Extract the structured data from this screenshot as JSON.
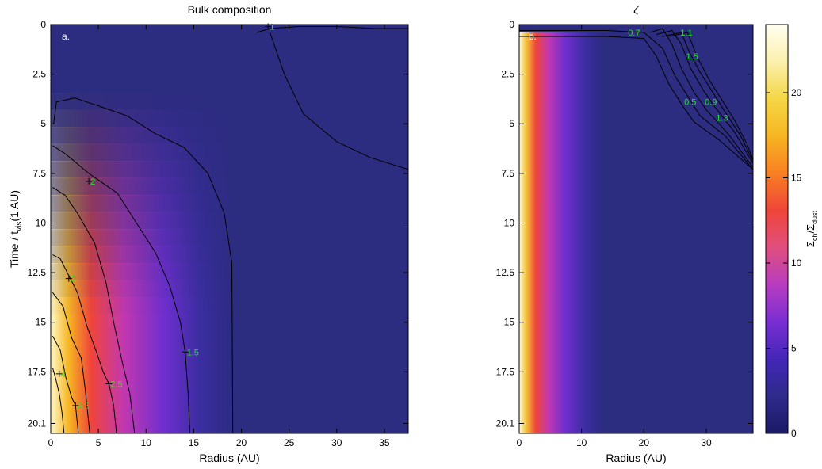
{
  "chart_data": [
    {
      "type": "heatmap",
      "title": "Bulk composition",
      "panel_label": "a.",
      "xlabel": "Radius (AU)",
      "ylabel": {
        "main": "Time / t",
        "sub": "vis",
        "tail": "(1 AU)"
      },
      "xlim": [
        0,
        37.5
      ],
      "ylim": [
        0,
        20.6
      ],
      "y_inverted": true,
      "xticks": [
        0,
        5,
        10,
        15,
        20,
        25,
        30,
        35
      ],
      "yticks": [
        0,
        2.5,
        5,
        7.5,
        10,
        12.5,
        15,
        17.5,
        20.1
      ],
      "contour_labels": [
        {
          "text": "1",
          "x": 22.8,
          "y": 0.1
        },
        {
          "text": "2",
          "x": 4.0,
          "y": 7.9
        },
        {
          "text": "3",
          "x": 1.9,
          "y": 12.8
        },
        {
          "text": "4",
          "x": 0.9,
          "y": 17.6
        },
        {
          "text": "1.5",
          "x": 14.1,
          "y": 16.5
        },
        {
          "text": "2.5",
          "x": 6.1,
          "y": 18.1
        },
        {
          "text": "3.5",
          "x": 2.6,
          "y": 19.2
        }
      ],
      "contours": [
        {
          "level": "1",
          "points": [
            [
              21.6,
              0.4
            ],
            [
              23,
              0.2
            ],
            [
              26,
              0.1
            ],
            [
              30,
              0.1
            ],
            [
              34,
              0.2
            ],
            [
              37.5,
              0.2
            ]
          ]
        },
        {
          "level": "1b",
          "points": [
            [
              23,
              0.4
            ],
            [
              24.5,
              2.5
            ],
            [
              26.5,
              4.5
            ],
            [
              30,
              5.9
            ],
            [
              33.5,
              6.7
            ],
            [
              37.5,
              7.3
            ]
          ]
        },
        {
          "level": "1.2",
          "points": [
            [
              0.3,
              5.0
            ],
            [
              0.6,
              3.9
            ],
            [
              2.5,
              3.7
            ],
            [
              5,
              4.1
            ],
            [
              8,
              4.6
            ],
            [
              11,
              5.5
            ],
            [
              14,
              6.2
            ],
            [
              16.5,
              7.5
            ],
            [
              18.2,
              9.5
            ],
            [
              19,
              12
            ],
            [
              19.1,
              20.6
            ]
          ]
        },
        {
          "level": "1.5",
          "points": [
            [
              0.2,
              6.1
            ],
            [
              1.5,
              6.5
            ],
            [
              4,
              7.5
            ],
            [
              7,
              8.5
            ],
            [
              9,
              10
            ],
            [
              11,
              11.5
            ],
            [
              12.5,
              13.2
            ],
            [
              13.6,
              15
            ],
            [
              14.1,
              16.5
            ],
            [
              14.4,
              18.5
            ],
            [
              14.6,
              20.6
            ]
          ]
        },
        {
          "level": "2",
          "points": [
            [
              0.2,
              8.2
            ],
            [
              1.5,
              8.6
            ],
            [
              2.8,
              9.5
            ],
            [
              4.6,
              11
            ],
            [
              5.8,
              13
            ],
            [
              6.6,
              15
            ],
            [
              7.5,
              17
            ],
            [
              8.3,
              18.6
            ],
            [
              8.8,
              20.6
            ]
          ]
        },
        {
          "level": "2.5",
          "points": [
            [
              0.2,
              11.6
            ],
            [
              1.0,
              11.8
            ],
            [
              2.8,
              13.5
            ],
            [
              3.8,
              15.2
            ],
            [
              4.8,
              16.5
            ],
            [
              5.5,
              17.5
            ],
            [
              6.1,
              18.1
            ],
            [
              6.6,
              19.2
            ],
            [
              6.9,
              20.6
            ]
          ]
        },
        {
          "level": "3",
          "points": [
            [
              0.2,
              13.5
            ],
            [
              1.3,
              14.2
            ],
            [
              2.2,
              15.8
            ],
            [
              3.2,
              16.8
            ],
            [
              3.6,
              18.3
            ],
            [
              4.1,
              20.6
            ]
          ]
        },
        {
          "level": "3.5",
          "points": [
            [
              0.2,
              15.7
            ],
            [
              1.0,
              16.4
            ],
            [
              1.6,
              17.8
            ],
            [
              2.2,
              18.8
            ],
            [
              2.6,
              19.2
            ],
            [
              2.9,
              20.6
            ]
          ]
        },
        {
          "level": "4",
          "points": [
            [
              0.2,
              17.3
            ],
            [
              0.5,
              17.8
            ],
            [
              0.9,
              18.6
            ],
            [
              1.2,
              19.6
            ],
            [
              1.4,
              20.6
            ]
          ]
        }
      ]
    },
    {
      "type": "heatmap",
      "title": "ζ",
      "panel_label": "b.",
      "xlabel": "Radius (AU)",
      "xlim": [
        0,
        37.5
      ],
      "ylim": [
        0,
        20.6
      ],
      "y_inverted": true,
      "xticks": [
        0,
        10,
        20,
        30
      ],
      "yticks": [
        0,
        2.5,
        5,
        7.5,
        10,
        12.5,
        15,
        17.5,
        20.1
      ],
      "contour_labels": [
        {
          "text": "0.7",
          "x": 17.2,
          "y": 0.4
        },
        {
          "text": "1.1",
          "x": 25.6,
          "y": 0.4
        },
        {
          "text": "1.5",
          "x": 26.5,
          "y": 1.6
        },
        {
          "text": "0.5",
          "x": 26.2,
          "y": 3.9
        },
        {
          "text": "0.9",
          "x": 29.5,
          "y": 3.9
        },
        {
          "text": "1.3",
          "x": 31.3,
          "y": 4.7
        }
      ],
      "contours": [
        {
          "level": "0.5",
          "points": [
            [
              0,
              0.6
            ],
            [
              14,
              0.6
            ],
            [
              20,
              0.7
            ],
            [
              22,
              1.6
            ],
            [
              24,
              3
            ],
            [
              26,
              4
            ],
            [
              28,
              4.9
            ],
            [
              32,
              5.8
            ],
            [
              37.5,
              7.3
            ]
          ]
        },
        {
          "level": "0.7",
          "points": [
            [
              0,
              0.3
            ],
            [
              14,
              0.3
            ],
            [
              20,
              0.4
            ],
            [
              23,
              1.2
            ],
            [
              25,
              2.6
            ],
            [
              27,
              3.6
            ],
            [
              29,
              4.6
            ],
            [
              33,
              5.6
            ],
            [
              37.5,
              7.3
            ]
          ]
        },
        {
          "level": "0.9",
          "points": [
            [
              21,
              0.4
            ],
            [
              23,
              0.2
            ],
            [
              24.5,
              1.0
            ],
            [
              26,
              2.2
            ],
            [
              28,
              3.4
            ],
            [
              30,
              4.3
            ],
            [
              33.5,
              5.5
            ],
            [
              37.5,
              7.2
            ]
          ]
        },
        {
          "level": "1.1",
          "points": [
            [
              22,
              0.5
            ],
            [
              24.5,
              0.3
            ],
            [
              26,
              1.0
            ],
            [
              27.5,
              2.2
            ],
            [
              29.5,
              3.3
            ],
            [
              31.5,
              4.2
            ],
            [
              34.5,
              5.4
            ],
            [
              37.5,
              7.0
            ]
          ]
        },
        {
          "level": "1.3",
          "points": [
            [
              23,
              0.6
            ],
            [
              26,
              0.4
            ],
            [
              27.3,
              1.4
            ],
            [
              29,
              2.4
            ],
            [
              31,
              3.4
            ],
            [
              33,
              4.4
            ],
            [
              35.5,
              5.6
            ],
            [
              37.5,
              6.9
            ]
          ]
        },
        {
          "level": "1.5",
          "points": [
            [
              24,
              0.6
            ],
            [
              27,
              0.4
            ],
            [
              28.5,
              1.6
            ],
            [
              30.5,
              2.8
            ],
            [
              32.5,
              3.8
            ],
            [
              34.5,
              4.8
            ],
            [
              36.5,
              6.0
            ],
            [
              37.5,
              6.8
            ]
          ]
        }
      ]
    }
  ],
  "colorbar": {
    "label": {
      "main": "Σ",
      "sub1": "ch",
      "mid": "/Σ",
      "sub2": "dust"
    },
    "range": [
      0,
      24
    ],
    "ticks": [
      0,
      5,
      10,
      15,
      20
    ],
    "colormap": [
      "#1a1a66",
      "#2e2b8a",
      "#4326b8",
      "#7a2ed3",
      "#b83cc0",
      "#e14f7e",
      "#f0453a",
      "#f87f22",
      "#f6b522",
      "#f5d645",
      "#fbf0ad",
      "#fffff0"
    ]
  }
}
